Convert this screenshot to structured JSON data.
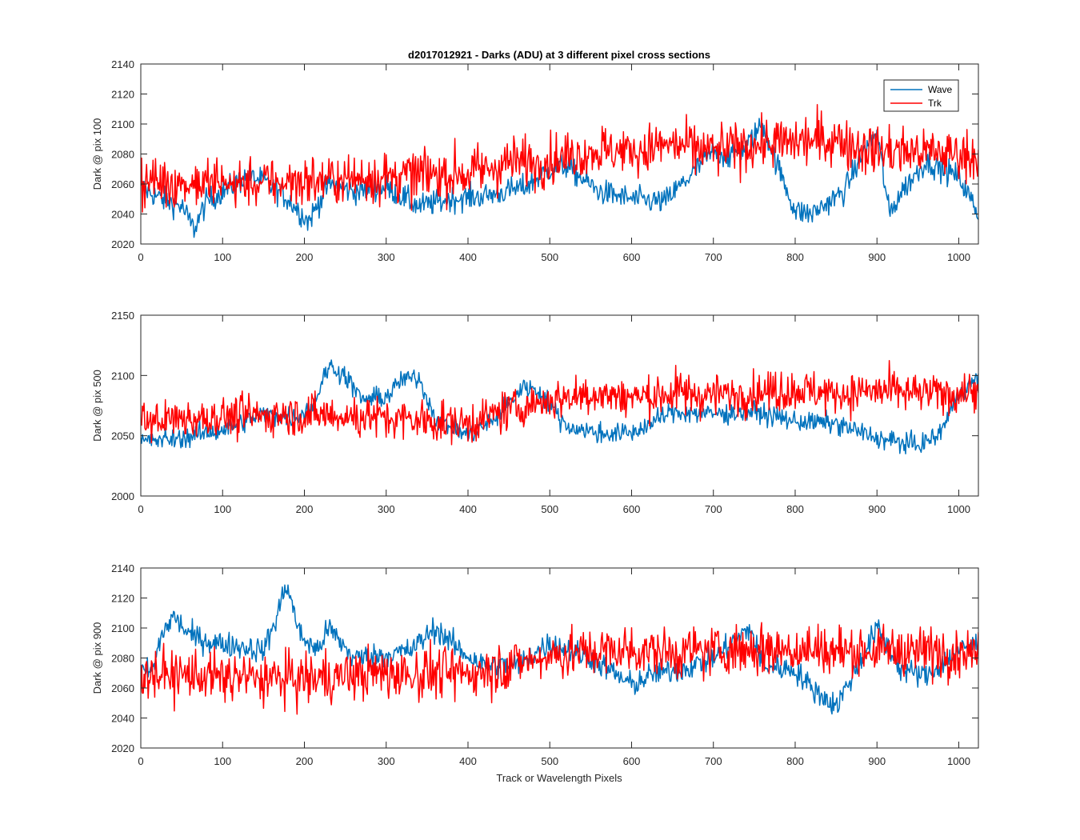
{
  "figure": {
    "title": "d2017012921 - Darks (ADU) at 3 different pixel cross sections",
    "xlabel": "Track or Wavelength Pixels"
  },
  "colors": {
    "wave": "#0072BD",
    "trk": "#FF0000",
    "axis": "#262626"
  },
  "chart_data": [
    {
      "type": "line",
      "ylabel": "Dark @ pix 100",
      "xlim": [
        0,
        1024
      ],
      "ylim": [
        2020,
        2140
      ],
      "xticks": [
        0,
        100,
        200,
        300,
        400,
        500,
        600,
        700,
        800,
        900,
        1000
      ],
      "yticks": [
        2020,
        2040,
        2060,
        2080,
        2100,
        2120,
        2140
      ],
      "legend": {
        "placement": "top-right",
        "entries": [
          "Wave",
          "Trk"
        ]
      },
      "series": [
        {
          "name": "Wave",
          "x": [
            0,
            25,
            50,
            65,
            80,
            100,
            130,
            150,
            180,
            205,
            230,
            260,
            300,
            340,
            380,
            420,
            470,
            500,
            520,
            560,
            600,
            640,
            680,
            700,
            720,
            740,
            760,
            780,
            800,
            820,
            860,
            880,
            900,
            915,
            930,
            960,
            1000,
            1024
          ],
          "values": [
            2058,
            2050,
            2045,
            2030,
            2048,
            2055,
            2065,
            2062,
            2050,
            2035,
            2060,
            2055,
            2058,
            2045,
            2050,
            2052,
            2058,
            2070,
            2072,
            2055,
            2050,
            2048,
            2070,
            2082,
            2078,
            2085,
            2100,
            2070,
            2042,
            2040,
            2055,
            2078,
            2095,
            2040,
            2055,
            2075,
            2065,
            2040
          ]
        },
        {
          "name": "Trk",
          "x": [
            0,
            100,
            200,
            300,
            400,
            450,
            500,
            550,
            600,
            650,
            700,
            750,
            800,
            850,
            900,
            950,
            1000,
            1024
          ],
          "values": [
            2062,
            2060,
            2062,
            2065,
            2067,
            2074,
            2076,
            2082,
            2082,
            2086,
            2082,
            2086,
            2088,
            2090,
            2082,
            2082,
            2080,
            2080
          ]
        }
      ]
    },
    {
      "type": "line",
      "ylabel": "Dark @ pix 500",
      "xlim": [
        0,
        1024
      ],
      "ylim": [
        2000,
        2150
      ],
      "xticks": [
        0,
        100,
        200,
        300,
        400,
        500,
        600,
        700,
        800,
        900,
        1000
      ],
      "yticks": [
        2000,
        2050,
        2100,
        2150
      ],
      "series": [
        {
          "name": "Wave",
          "x": [
            0,
            50,
            100,
            150,
            190,
            210,
            230,
            250,
            270,
            300,
            320,
            340,
            360,
            400,
            430,
            470,
            490,
            520,
            560,
            600,
            650,
            700,
            750,
            800,
            850,
            900,
            950,
            975,
            1000,
            1024
          ],
          "values": [
            2045,
            2048,
            2055,
            2068,
            2065,
            2075,
            2108,
            2100,
            2080,
            2082,
            2097,
            2098,
            2065,
            2050,
            2062,
            2092,
            2085,
            2058,
            2052,
            2052,
            2070,
            2068,
            2070,
            2062,
            2060,
            2048,
            2042,
            2050,
            2085,
            2098
          ]
        },
        {
          "name": "Trk",
          "x": [
            0,
            100,
            200,
            300,
            400,
            450,
            500,
            550,
            600,
            650,
            700,
            750,
            800,
            850,
            900,
            950,
            1000,
            1024
          ],
          "values": [
            2062,
            2066,
            2068,
            2065,
            2060,
            2072,
            2080,
            2085,
            2082,
            2085,
            2084,
            2086,
            2088,
            2085,
            2087,
            2085,
            2085,
            2088
          ]
        }
      ]
    },
    {
      "type": "line",
      "ylabel": "Dark @ pix 900",
      "xlim": [
        0,
        1024
      ],
      "ylim": [
        2020,
        2140
      ],
      "xticks": [
        0,
        100,
        200,
        300,
        400,
        500,
        600,
        700,
        800,
        900,
        1000
      ],
      "yticks": [
        2020,
        2040,
        2060,
        2080,
        2100,
        2120,
        2140
      ],
      "series": [
        {
          "name": "Wave",
          "x": [
            0,
            15,
            25,
            40,
            60,
            90,
            120,
            150,
            165,
            178,
            195,
            215,
            230,
            260,
            300,
            330,
            360,
            390,
            420,
            460,
            500,
            550,
            600,
            630,
            660,
            700,
            745,
            760,
            800,
            820,
            850,
            880,
            900,
            930,
            960,
            1000,
            1024
          ],
          "values": [
            2070,
            2072,
            2095,
            2108,
            2095,
            2090,
            2088,
            2085,
            2105,
            2130,
            2095,
            2085,
            2100,
            2080,
            2082,
            2085,
            2100,
            2085,
            2075,
            2075,
            2090,
            2080,
            2062,
            2070,
            2072,
            2080,
            2100,
            2075,
            2072,
            2060,
            2048,
            2078,
            2100,
            2072,
            2068,
            2085,
            2090
          ]
        },
        {
          "name": "Trk",
          "x": [
            0,
            100,
            200,
            300,
            400,
            450,
            500,
            550,
            600,
            650,
            700,
            750,
            800,
            850,
            900,
            950,
            1000,
            1024
          ],
          "values": [
            2070,
            2067,
            2066,
            2070,
            2070,
            2075,
            2082,
            2084,
            2085,
            2084,
            2085,
            2086,
            2086,
            2085,
            2085,
            2084,
            2085,
            2082
          ]
        }
      ]
    }
  ]
}
